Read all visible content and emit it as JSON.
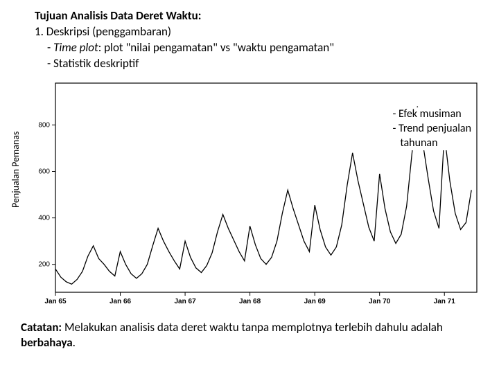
{
  "header": {
    "title": "Tujuan Analisis Data Deret Waktu:",
    "item1": "1.   Deskripsi (penggambaran)",
    "sub1_prefix": "- ",
    "sub1_italic": "Time plot",
    "sub1_rest": ": plot \"nilai pengamatan\" vs \"waktu pengamatan\"",
    "sub2": "- Statistik deskriptif"
  },
  "annotations": {
    "a1": "- Efek musiman",
    "a2": "- Trend penjualan",
    "a3": "  tahunan"
  },
  "chart": {
    "type": "line",
    "ylabel": "Penjualan Pemanas",
    "ylabel_fontsize": 14,
    "background_color": "#ffffff",
    "line_color": "#000000",
    "line_width": 1.3,
    "axis_color": "#000000",
    "tick_fontsize": 10,
    "xlim": [
      0,
      78
    ],
    "ylim": [
      80,
      980
    ],
    "yticks": [
      200,
      400,
      600,
      800
    ],
    "xticks": [
      {
        "pos": 0,
        "label": "Jan 65"
      },
      {
        "pos": 12,
        "label": "Jan 66"
      },
      {
        "pos": 24,
        "label": "Jan 67"
      },
      {
        "pos": 36,
        "label": "Jan 68"
      },
      {
        "pos": 48,
        "label": "Jan 69"
      },
      {
        "pos": 60,
        "label": "Jan 70"
      },
      {
        "pos": 72,
        "label": "Jan 71"
      }
    ],
    "series": [
      180,
      145,
      125,
      115,
      135,
      170,
      235,
      280,
      225,
      200,
      170,
      150,
      255,
      200,
      160,
      140,
      160,
      200,
      280,
      355,
      300,
      255,
      215,
      180,
      300,
      230,
      185,
      165,
      195,
      250,
      340,
      415,
      355,
      305,
      255,
      215,
      365,
      285,
      225,
      200,
      230,
      300,
      420,
      520,
      440,
      370,
      300,
      255,
      455,
      350,
      275,
      240,
      275,
      370,
      540,
      680,
      560,
      460,
      360,
      300,
      590,
      440,
      340,
      290,
      330,
      450,
      680,
      880,
      720,
      570,
      430,
      355,
      760,
      560,
      420,
      350,
      380,
      520
    ]
  },
  "footer": {
    "label": "Catatan:",
    "text_a": " Melakukan analisis data deret waktu tanpa memplotnya terlebih dahulu adalah ",
    "bold": "berbahaya",
    "text_b": "."
  }
}
